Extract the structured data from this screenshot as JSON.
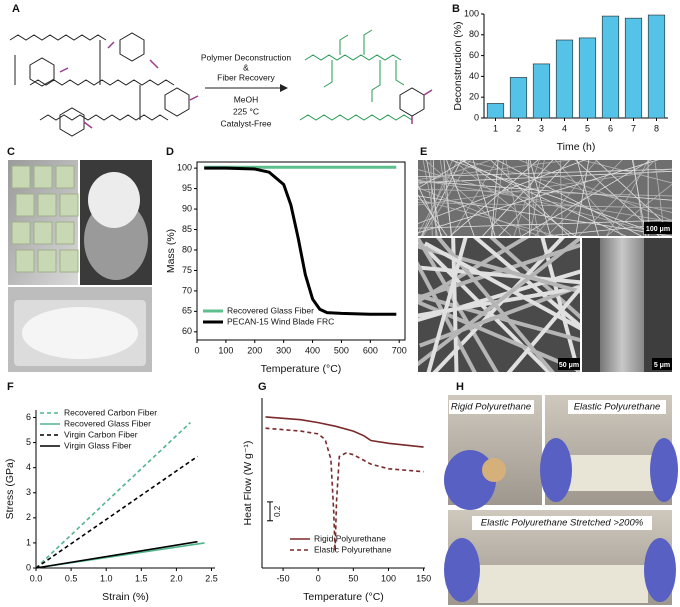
{
  "panel_labels": [
    "A",
    "B",
    "C",
    "D",
    "E",
    "F",
    "G",
    "H"
  ],
  "scheme": {
    "arrow_above": [
      "Polymer Deconstruction",
      "&",
      "Fiber Recovery"
    ],
    "arrow_below": [
      "MeOH",
      "225 °C",
      "Catalyst-Free"
    ]
  },
  "micrographs": {
    "scale_bars": [
      "100 μm",
      "50 μm",
      "5 μm"
    ]
  },
  "photos": {
    "captions": [
      "Rigid Polyurethane",
      "Elastic Polyurethane",
      "Elastic Polyurethane Stretched >200%"
    ]
  },
  "chart_data": [
    {
      "type": "bar",
      "xlabel": "Time (h)",
      "ylabel": "Deconstruction (%)",
      "categories": [
        "1",
        "2",
        "3",
        "4",
        "5",
        "6",
        "7",
        "8"
      ],
      "values": [
        14,
        39,
        52,
        75,
        77,
        98,
        96,
        99
      ],
      "color": "#55c3e8",
      "ylim": [
        0,
        100
      ],
      "yticks": [
        0,
        20,
        40,
        60,
        80,
        100
      ]
    },
    {
      "type": "line",
      "xlabel": "Temperature (°C)",
      "ylabel": "Mass (%)",
      "xlim": [
        0,
        720
      ],
      "xticks": [
        0,
        100,
        200,
        300,
        400,
        500,
        600,
        700
      ],
      "ylim": [
        58,
        101.5
      ],
      "yticks": [
        60,
        65,
        70,
        75,
        80,
        85,
        90,
        95,
        100
      ],
      "legend": "lower left",
      "series": [
        {
          "name": "Recovered Glass Fiber",
          "color": "#5cbf8c",
          "x": [
            25,
            100,
            200,
            300,
            400,
            500,
            600,
            690
          ],
          "values": [
            100.2,
            100.2,
            100.2,
            100.2,
            100.2,
            100.2,
            100.2,
            100.2
          ]
        },
        {
          "name": "PECAN-15 Wind Blade FRC",
          "color": "#000000",
          "x": [
            25,
            100,
            200,
            250,
            300,
            325,
            350,
            375,
            400,
            425,
            450,
            500,
            600,
            690
          ],
          "values": [
            100,
            100,
            99.8,
            99,
            96,
            91,
            83,
            74,
            68,
            65.5,
            64.7,
            64.5,
            64.3,
            64.3
          ]
        }
      ]
    },
    {
      "type": "line",
      "xlabel": "Strain (%)",
      "ylabel": "Stress (GPa)",
      "xlim": [
        0,
        2.55
      ],
      "xticks": [
        {
          "value": 0,
          "label": "0.0"
        },
        0.5,
        {
          "value": 1,
          "label": "1.0"
        },
        1.5,
        {
          "value": 2,
          "label": "2.0"
        },
        2.5
      ],
      "ylim": [
        0,
        6.3
      ],
      "yticks": [
        0,
        1,
        2,
        3,
        4,
        5,
        6
      ],
      "legend": "upper left",
      "series": [
        {
          "name": "Recovered Carbon Fiber",
          "color": "#4fb58a",
          "dashed": true,
          "x": [
            0,
            2.2
          ],
          "values": [
            0,
            5.8
          ]
        },
        {
          "name": "Recovered Glass Fiber",
          "color": "#4fb58a",
          "dashed": false,
          "x": [
            0,
            2.4
          ],
          "values": [
            0,
            1.0
          ]
        },
        {
          "name": "Virgin Carbon Fiber",
          "color": "#000000",
          "dashed": true,
          "x": [
            0,
            2.3
          ],
          "values": [
            0,
            4.45
          ]
        },
        {
          "name": "Virgin Glass Fiber",
          "color": "#000000",
          "dashed": false,
          "x": [
            0,
            2.3
          ],
          "values": [
            0,
            1.05
          ]
        }
      ]
    },
    {
      "type": "line",
      "xlabel": "Temperature (°C)",
      "ylabel": "Heat Flow (W g⁻¹)",
      "xlim": [
        -80,
        152
      ],
      "xticks": [
        -50,
        0,
        50,
        100,
        150
      ],
      "ylim": [
        -1.6,
        0.2
      ],
      "legend": "lower right",
      "scale_bar": 0.2,
      "series": [
        {
          "name": "Rigid Polyurethane",
          "color": "#7a2a2a",
          "dashed": false,
          "x": [
            -75,
            -25,
            0,
            25,
            50,
            65,
            75,
            100,
            150
          ],
          "values": [
            0,
            -0.03,
            -0.06,
            -0.1,
            -0.15,
            -0.2,
            -0.25,
            -0.28,
            -0.32
          ]
        },
        {
          "name": "Elastic Polyurethane",
          "color": "#7a2a2a",
          "dashed": true,
          "x": [
            -75,
            -25,
            0,
            10,
            18,
            22,
            24,
            26,
            30,
            40,
            50,
            75,
            100,
            150
          ],
          "values": [
            -0.12,
            -0.15,
            -0.18,
            -0.24,
            -0.45,
            -1.0,
            -1.42,
            -0.9,
            -0.42,
            -0.38,
            -0.4,
            -0.5,
            -0.55,
            -0.58
          ]
        }
      ]
    }
  ]
}
